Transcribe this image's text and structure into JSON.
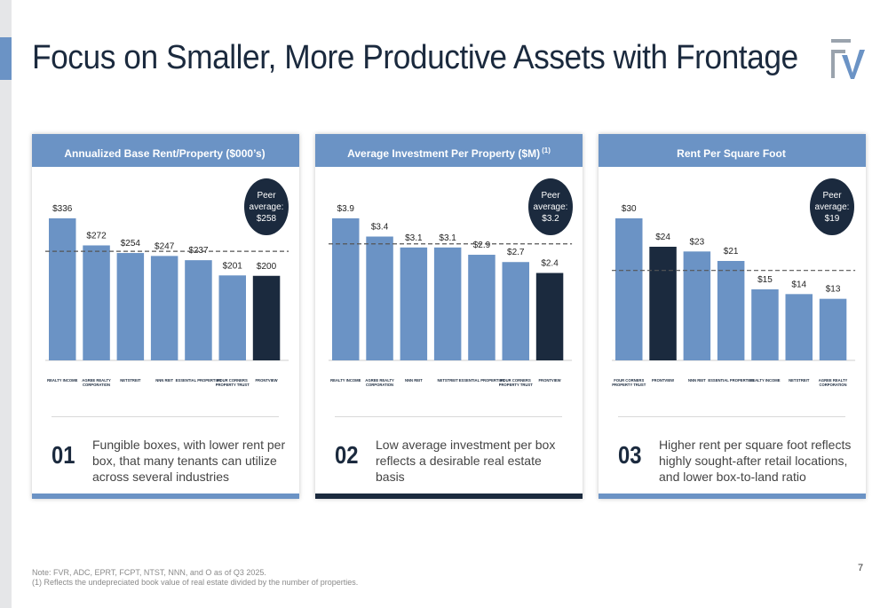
{
  "title": "Focus on Smaller, More Productive Assets with Frontage",
  "page_number": "7",
  "colors": {
    "bar": "#6b93c5",
    "highlight": "#1b2a3e",
    "header": "#6b93c5",
    "accent_dark": "#1b2a3e"
  },
  "cards": [
    {
      "number": "01",
      "description": "Fungible boxes, with lower rent per box, that many tenants can utilize across several industries"
    },
    {
      "number": "02",
      "description": "Low average investment per box reflects a desirable real estate basis"
    },
    {
      "number": "03",
      "description": "Higher rent per square foot reflects highly sought-after retail locations, and lower box-to-land ratio"
    }
  ],
  "chart_data": [
    {
      "type": "bar",
      "title": "Annualized Base Rent/Property ($000’s)",
      "title_note": "",
      "categories": [
        "REALTY INCOME",
        "AGREE REALTY CORPORATION",
        "NETSTREIT",
        "NNN REIT",
        "ESSENTIAL PROPERTIES",
        "FOUR CORNERS PROPERTY TRUST",
        "FRONTVIEW"
      ],
      "values": [
        336,
        272,
        254,
        247,
        237,
        201,
        200
      ],
      "labels": [
        "$336",
        "$272",
        "$254",
        "$247",
        "$237",
        "$201",
        "$200"
      ],
      "highlight_index": 6,
      "peer_average": {
        "label_line1": "Peer",
        "label_line2": "average:",
        "value_text": "$258",
        "value": 258
      },
      "ylim": [
        0,
        336
      ]
    },
    {
      "type": "bar",
      "title": "Average Investment Per Property ($M)",
      "title_note": "(1)",
      "categories": [
        "REALTY INCOME",
        "AGREE REALTY CORPORATION",
        "NNN REIT",
        "NETSTREIT",
        "ESSENTIAL PROPERTIES",
        "FOUR CORNERS PROPERTY TRUST",
        "FRONTVIEW"
      ],
      "values": [
        3.9,
        3.4,
        3.1,
        3.1,
        2.9,
        2.7,
        2.4
      ],
      "labels": [
        "$3.9",
        "$3.4",
        "$3.1",
        "$3.1",
        "$2.9",
        "$2.7",
        "$2.4"
      ],
      "highlight_index": 6,
      "peer_average": {
        "label_line1": "Peer",
        "label_line2": "average:",
        "value_text": "$3.2",
        "value": 3.2
      },
      "ylim": [
        0,
        3.9
      ]
    },
    {
      "type": "bar",
      "title": "Rent Per Square Foot",
      "title_note": "",
      "categories": [
        "FOUR CORNERS PROPERTY TRUST",
        "FRONTVIEW",
        "NNN REIT",
        "ESSENTIAL PROPERTIES",
        "REALTY INCOME",
        "NETSTREIT",
        "AGREE REALTY CORPORATION"
      ],
      "values": [
        30,
        24,
        23,
        21,
        15,
        14,
        13
      ],
      "labels": [
        "$30",
        "$24",
        "$23",
        "$21",
        "$15",
        "$14",
        "$13"
      ],
      "highlight_index": 1,
      "peer_average": {
        "label_line1": "Peer",
        "label_line2": "average:",
        "value_text": "$19",
        "value": 19
      },
      "ylim": [
        0,
        30
      ]
    }
  ],
  "footnote_1": "Note: FVR, ADC, EPRT, FCPT, NTST, NNN, and O as of Q3 2025.",
  "footnote_2": "(1) Reflects the undepreciated book value of real estate divided by the number of properties."
}
